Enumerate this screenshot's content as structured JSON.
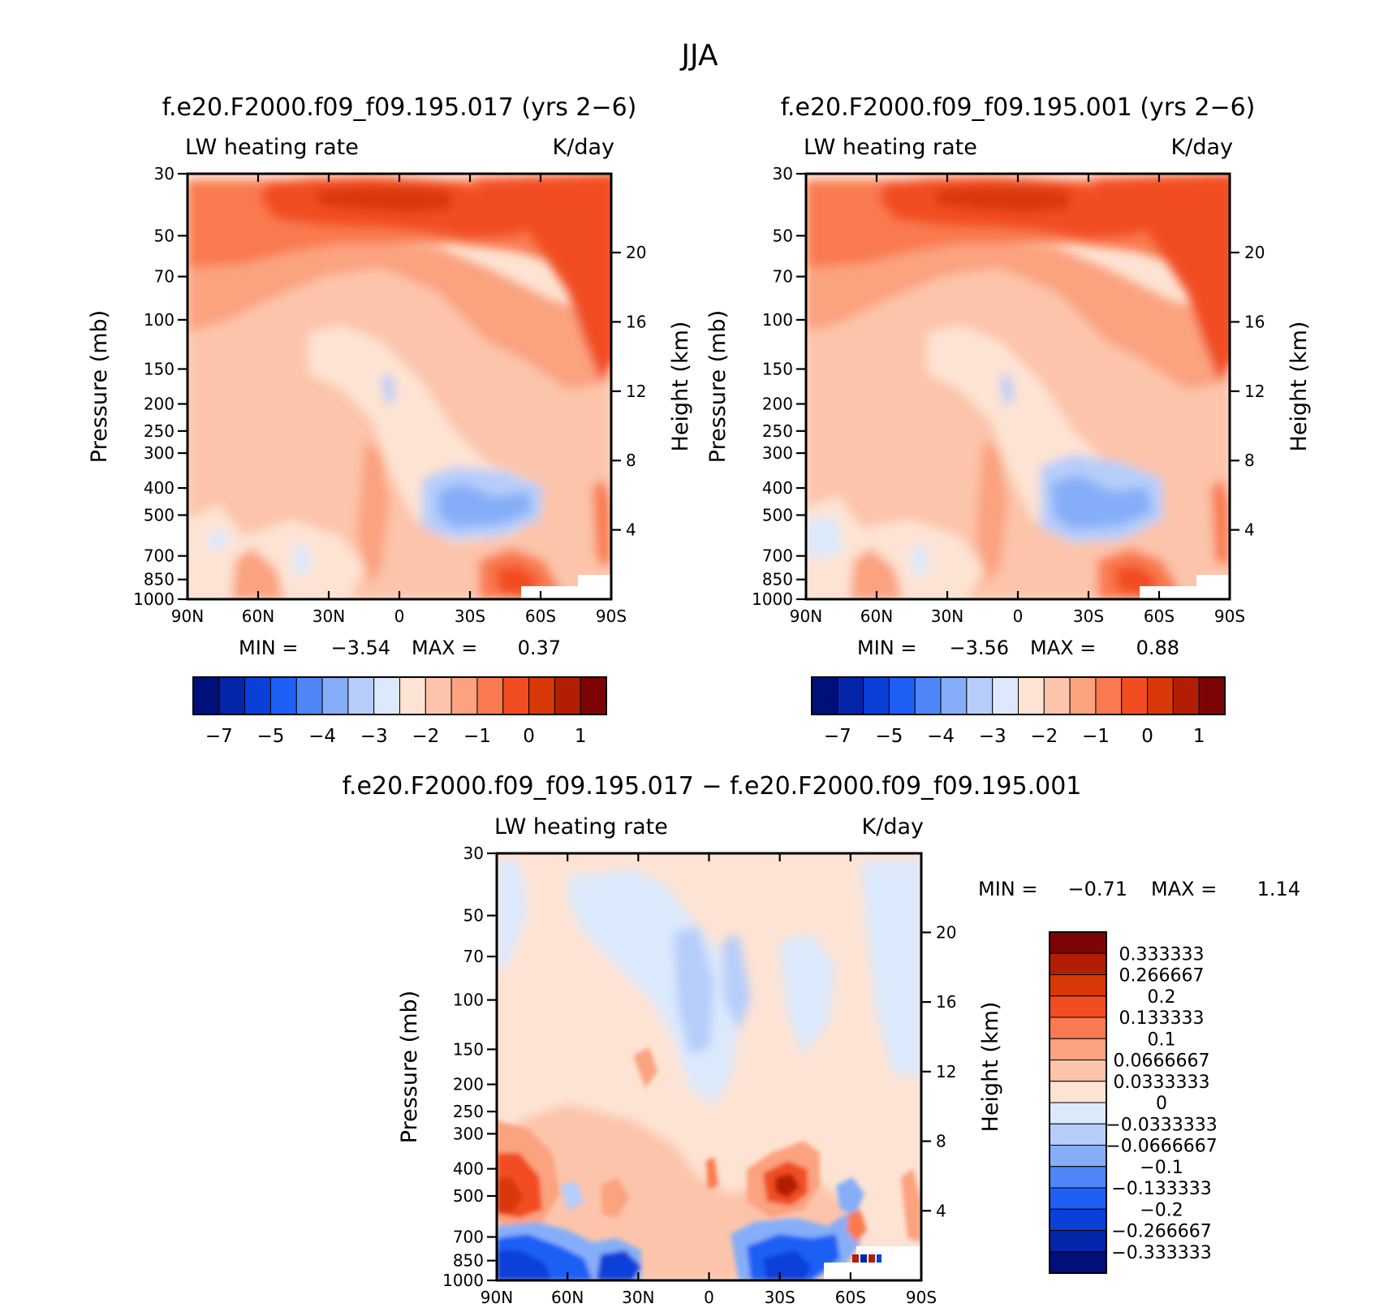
{
  "figure": {
    "title": "JJA",
    "colors": {
      "page_background": "#ffffff",
      "axis": "#000000",
      "panel_background": "#fde3d3"
    }
  },
  "chart_data": [
    {
      "type": "heatmap",
      "title": "f.e20.F2000.f09_f09.195.017 (yrs 2−6)",
      "left_label": "LW heating rate",
      "right_label": "K/day",
      "xlabel": "",
      "ylabel": "Pressure (mb)",
      "y2label": "Height (km)",
      "x_ticks": [
        "90N",
        "60N",
        "30N",
        "0",
        "30S",
        "60S",
        "90S"
      ],
      "y_ticks": [
        "30",
        "50",
        "70",
        "100",
        "150",
        "200",
        "250",
        "300",
        "400",
        "500",
        "700",
        "850",
        "1000"
      ],
      "y2_ticks": [
        "20",
        "16",
        "12",
        "8",
        "4"
      ],
      "min_label": "MIN =",
      "min_value": "−3.54",
      "max_label": "MAX =",
      "max_value": "0.37",
      "colorbar_labels": [
        "−7",
        "−5",
        "−4",
        "−3",
        "−2",
        "−1",
        "0",
        "1"
      ]
    },
    {
      "type": "heatmap",
      "title": "f.e20.F2000.f09_f09.195.001 (yrs 2−6)",
      "left_label": "LW heating rate",
      "right_label": "K/day",
      "xlabel": "",
      "ylabel": "Pressure (mb)",
      "y2label": "Height (km)",
      "x_ticks": [
        "90N",
        "60N",
        "30N",
        "0",
        "30S",
        "60S",
        "90S"
      ],
      "y_ticks": [
        "30",
        "50",
        "70",
        "100",
        "150",
        "200",
        "250",
        "300",
        "400",
        "500",
        "700",
        "850",
        "1000"
      ],
      "y2_ticks": [
        "20",
        "16",
        "12",
        "8",
        "4"
      ],
      "min_label": "MIN =",
      "min_value": "−3.56",
      "max_label": "MAX =",
      "max_value": "0.88",
      "colorbar_labels": [
        "−7",
        "−5",
        "−4",
        "−3",
        "−2",
        "−1",
        "0",
        "1"
      ]
    },
    {
      "type": "heatmap",
      "title": "f.e20.F2000.f09_f09.195.017 − f.e20.F2000.f09_f09.195.001",
      "left_label": "LW heating rate",
      "right_label": "K/day",
      "xlabel": "",
      "ylabel": "Pressure (mb)",
      "y2label": "Height (km)",
      "x_ticks": [
        "90N",
        "60N",
        "30N",
        "0",
        "30S",
        "60S",
        "90S"
      ],
      "y_ticks": [
        "30",
        "50",
        "70",
        "100",
        "150",
        "200",
        "250",
        "300",
        "400",
        "500",
        "700",
        "850",
        "1000"
      ],
      "y2_ticks": [
        "20",
        "16",
        "12",
        "8",
        "4"
      ],
      "min_label": "MIN =",
      "min_value": "−0.71",
      "max_label": "MAX =",
      "max_value": "1.14",
      "colorbar_labels": [
        "0.333333",
        "0.266667",
        "0.2",
        "0.133333",
        "0.1",
        "0.0666667",
        "0.0333333",
        "0",
        "−0.0333333",
        "−0.0666667",
        "−0.1",
        "−0.133333",
        "−0.2",
        "−0.266667",
        "−0.333333"
      ]
    }
  ],
  "colorbars": {
    "abs_colors": [
      "#00107a",
      "#0424aa",
      "#0a40d8",
      "#1e5ff5",
      "#4f86f7",
      "#86aef8",
      "#b6cdfa",
      "#dce9fc",
      "#fde3d3",
      "#fcc4aa",
      "#fba27f",
      "#f97a50",
      "#f24d22",
      "#d93808",
      "#b21e04",
      "#7d0404"
    ],
    "diff_colors": [
      "#7d0404",
      "#b21e04",
      "#d93808",
      "#f24d22",
      "#f97a50",
      "#fba27f",
      "#fcc4aa",
      "#fde3d3",
      "#dce9fc",
      "#b6cdfa",
      "#86aef8",
      "#4f86f7",
      "#1e5ff5",
      "#0a40d8",
      "#0424aa",
      "#00107a"
    ]
  }
}
